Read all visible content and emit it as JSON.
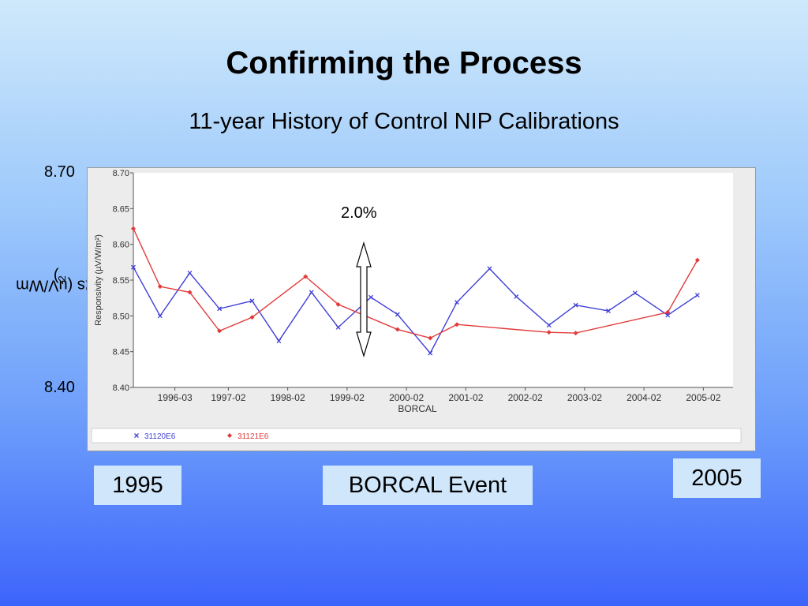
{
  "title": "Confirming the Process",
  "subtitle": "11-year History of Control NIP Calibrations",
  "outer_axis": {
    "top_label": "8.70",
    "bottom_label": "8.40",
    "ylabel": "Rs (uV/Wm",
    "ylabel_sup": "-2",
    "ylabel_end": ")"
  },
  "annotation": {
    "percent": "2.0%",
    "arrow_from": 8.45,
    "arrow_to": 8.61,
    "arrow_x": 1999.3
  },
  "timeline": {
    "start": "1995",
    "event": "BORCAL Event",
    "end": "2005"
  },
  "chart_data": {
    "type": "line",
    "title": "",
    "xlabel": "BORCAL",
    "ylabel": "Responsivity (µV/W/m²)",
    "xlim": [
      1995.5,
      2005.6
    ],
    "ylim": [
      8.4,
      8.7
    ],
    "xticks": [
      1996.2,
      1997.1,
      1998.1,
      1999.1,
      2000.1,
      2001.1,
      2002.1,
      2003.1,
      2004.1,
      2005.1
    ],
    "xtick_labels": [
      "1996-03",
      "1997-02",
      "1998-02",
      "1999-02",
      "2000-02",
      "2001-02",
      "2002-02",
      "2003-02",
      "2004-02",
      "2005-02"
    ],
    "yticks": [
      8.4,
      8.45,
      8.5,
      8.55,
      8.6,
      8.65,
      8.7
    ],
    "ytick_labels": [
      "8.40",
      "8.45",
      "8.50",
      "8.55",
      "8.60",
      "8.65",
      "8.70"
    ],
    "legend_position": "bottom",
    "series": [
      {
        "name": "31120E6",
        "color": "#3f3fd8",
        "marker": "x",
        "x": [
          1995.5,
          1995.95,
          1996.45,
          1996.95,
          1997.5,
          1997.95,
          1998.5,
          1998.95,
          1999.5,
          1999.95,
          2000.5,
          2000.95,
          2001.5,
          2001.95,
          2002.5,
          2002.95,
          2003.5,
          2003.95,
          2004.5,
          2005.0
        ],
        "y": [
          8.568,
          8.5,
          8.56,
          8.51,
          8.521,
          8.465,
          8.533,
          8.484,
          8.526,
          8.502,
          8.448,
          8.519,
          8.566,
          8.527,
          8.487,
          8.515,
          8.507,
          8.532,
          8.501,
          8.529
        ]
      },
      {
        "name": "31121E6",
        "color": "#e23a3a",
        "marker": "diamond",
        "x": [
          1995.5,
          1995.95,
          1996.45,
          1996.95,
          1997.5,
          1998.4,
          1998.95,
          1999.95,
          2000.5,
          2000.95,
          2002.5,
          2002.95,
          2004.5,
          2005.0
        ],
        "y": [
          8.622,
          8.541,
          8.533,
          8.479,
          8.498,
          8.555,
          8.516,
          8.481,
          8.469,
          8.488,
          8.477,
          8.476,
          8.505,
          8.578
        ]
      }
    ]
  }
}
